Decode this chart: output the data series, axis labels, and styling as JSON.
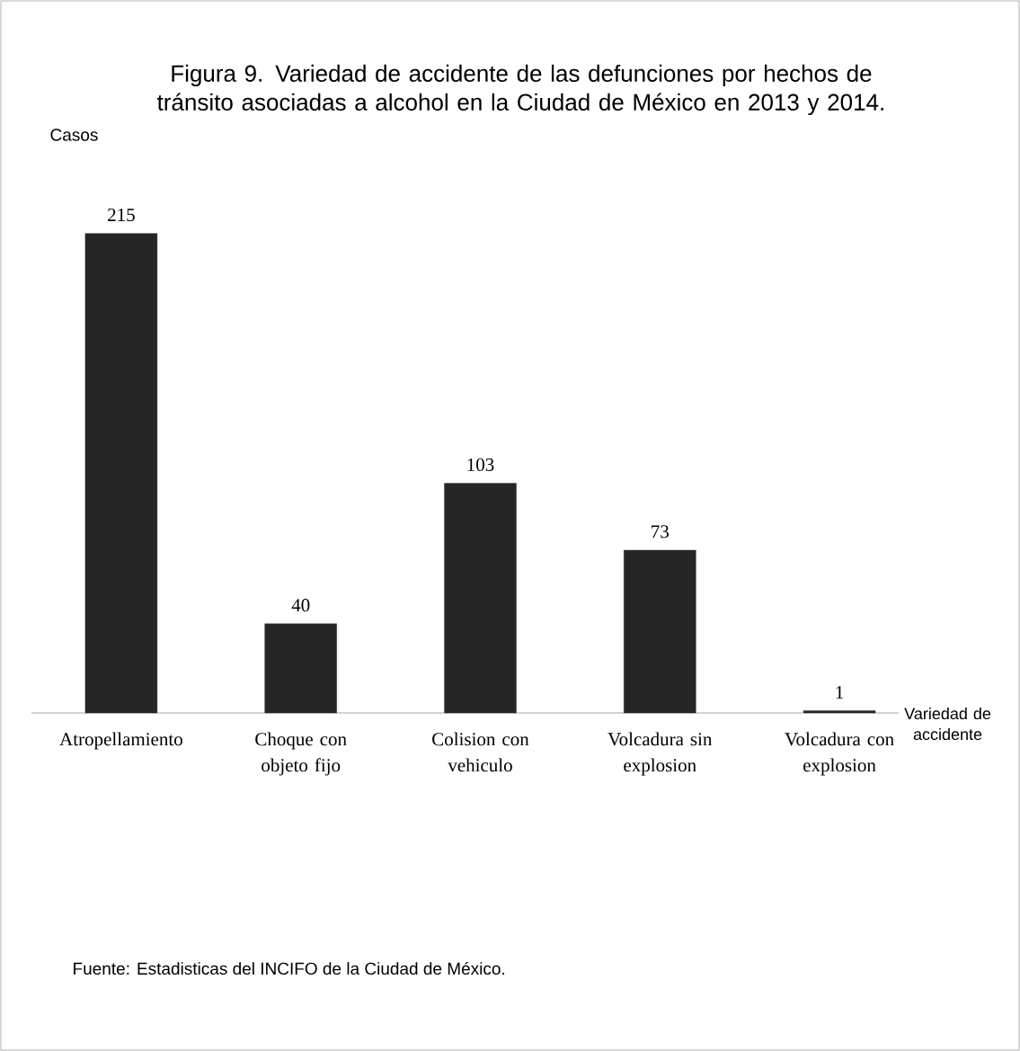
{
  "chart_data": {
    "type": "bar",
    "title": "Figura 9. Variedad de accidente  de las defunciones por hechos de tránsito asociadas a alcohol en la Ciudad de México en 2013 y 2014.",
    "xlabel": "Variedad de accidente",
    "categories": [
      "Atropellamiento",
      "Choque con objeto fijo",
      "Colision con vehiculo",
      "Volcadura sin explosion",
      "Volcadura con explosion"
    ],
    "values": [
      215,
      40,
      103,
      73,
      1
    ],
    "color": "#262626",
    "data_labels": true,
    "annotations": [
      "Casos",
      "Fuente: Estadisticas del INCIFO de la Ciudad de México."
    ]
  }
}
